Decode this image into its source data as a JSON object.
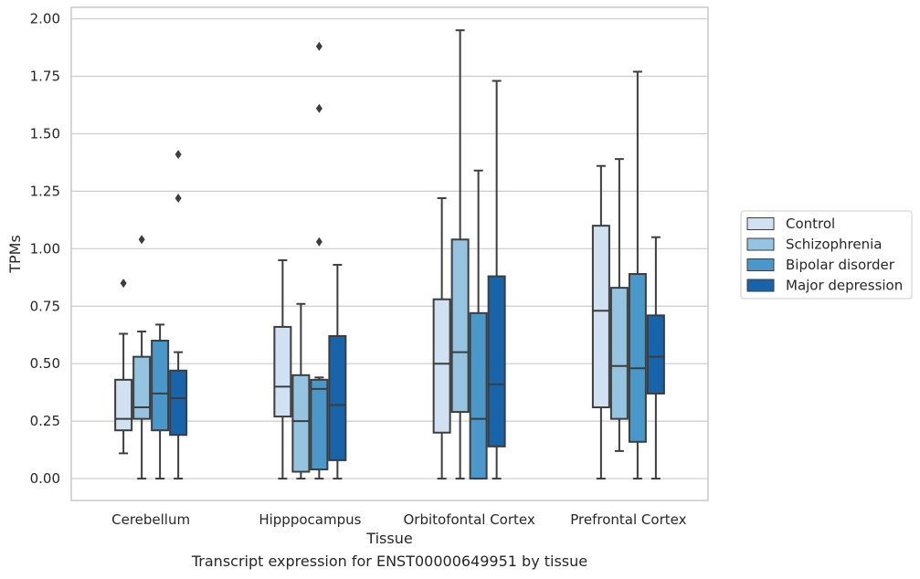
{
  "caption": "Transcript expression for ENST00000649951 by tissue",
  "chart_data": {
    "type": "box",
    "xlabel": "Tissue",
    "ylabel": "TPMs",
    "ylim": [
      -0.095,
      2.05
    ],
    "yticks": [
      0.0,
      0.25,
      0.5,
      0.75,
      1.0,
      1.25,
      1.5,
      1.75,
      2.0
    ],
    "ytick_labels": [
      "0.00",
      "0.25",
      "0.50",
      "0.75",
      "1.00",
      "1.25",
      "1.50",
      "1.75",
      "2.00"
    ],
    "grid": "horizontal",
    "legend_position": "right",
    "categories": [
      "Cerebellum",
      "Hipppocampus",
      "Orbitofontal Cortex",
      "Prefrontal Cortex"
    ],
    "series": [
      {
        "name": "Control",
        "color": "#d0e1f2",
        "boxes": [
          {
            "whislo": 0.11,
            "q1": 0.21,
            "med": 0.26,
            "q3": 0.43,
            "whishi": 0.63,
            "fliers": [
              0.85
            ]
          },
          {
            "whislo": 0.0,
            "q1": 0.27,
            "med": 0.4,
            "q3": 0.66,
            "whishi": 0.95,
            "fliers": []
          },
          {
            "whislo": 0.0,
            "q1": 0.2,
            "med": 0.5,
            "q3": 0.78,
            "whishi": 1.22,
            "fliers": []
          },
          {
            "whislo": 0.0,
            "q1": 0.31,
            "med": 0.73,
            "q3": 1.1,
            "whishi": 1.36,
            "fliers": []
          }
        ]
      },
      {
        "name": "Schizophrenia",
        "color": "#94c4df",
        "boxes": [
          {
            "whislo": 0.0,
            "q1": 0.26,
            "med": 0.31,
            "q3": 0.53,
            "whishi": 0.64,
            "fliers": [
              1.04
            ]
          },
          {
            "whislo": 0.0,
            "q1": 0.03,
            "med": 0.25,
            "q3": 0.45,
            "whishi": 0.76,
            "fliers": []
          },
          {
            "whislo": 0.0,
            "q1": 0.29,
            "med": 0.55,
            "q3": 1.04,
            "whishi": 1.95,
            "fliers": []
          },
          {
            "whislo": 0.12,
            "q1": 0.26,
            "med": 0.49,
            "q3": 0.83,
            "whishi": 1.39,
            "fliers": []
          }
        ]
      },
      {
        "name": "Bipolar disorder",
        "color": "#4a98c9",
        "boxes": [
          {
            "whislo": 0.0,
            "q1": 0.21,
            "med": 0.37,
            "q3": 0.6,
            "whishi": 0.67,
            "fliers": []
          },
          {
            "whislo": 0.0,
            "q1": 0.04,
            "med": 0.39,
            "q3": 0.43,
            "whishi": 0.44,
            "fliers": [
              1.03,
              1.61,
              1.88
            ]
          },
          {
            "whislo": 0.0,
            "q1": 0.0,
            "med": 0.26,
            "q3": 0.72,
            "whishi": 1.34,
            "fliers": []
          },
          {
            "whislo": 0.0,
            "q1": 0.16,
            "med": 0.48,
            "q3": 0.89,
            "whishi": 1.77,
            "fliers": []
          }
        ]
      },
      {
        "name": "Major depression",
        "color": "#1764ab",
        "boxes": [
          {
            "whislo": 0.0,
            "q1": 0.19,
            "med": 0.35,
            "q3": 0.47,
            "whishi": 0.55,
            "fliers": [
              1.22,
              1.41
            ]
          },
          {
            "whislo": 0.0,
            "q1": 0.08,
            "med": 0.32,
            "q3": 0.62,
            "whishi": 0.93,
            "fliers": []
          },
          {
            "whislo": 0.0,
            "q1": 0.14,
            "med": 0.41,
            "q3": 0.88,
            "whishi": 1.73,
            "fliers": []
          },
          {
            "whislo": 0.0,
            "q1": 0.37,
            "med": 0.53,
            "q3": 0.71,
            "whishi": 1.05,
            "fliers": []
          }
        ]
      }
    ]
  }
}
